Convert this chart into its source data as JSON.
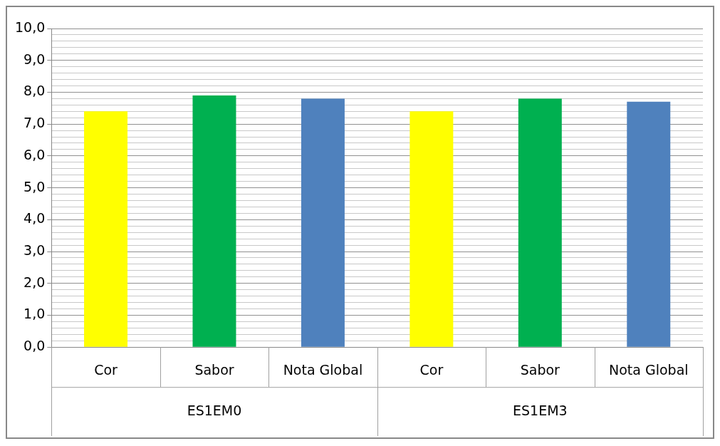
{
  "chart_data": {
    "type": "bar",
    "categories": [
      "Cor",
      "Sabor",
      "Nota Global",
      "Cor",
      "Sabor",
      "Nota Global"
    ],
    "values": [
      7.4,
      7.9,
      7.8,
      7.4,
      7.8,
      7.7
    ],
    "colors": [
      "#ffff00",
      "#00b050",
      "#4f81bd",
      "#ffff00",
      "#00b050",
      "#4f81bd"
    ],
    "ylim": [
      0,
      10
    ],
    "yticks": [
      {
        "value": 0,
        "label": "0,0"
      },
      {
        "value": 0.2,
        "label": null
      },
      {
        "value": 0.4,
        "label": null
      },
      {
        "value": 0.6,
        "label": null
      },
      {
        "value": 0.8,
        "label": null
      },
      {
        "value": 1,
        "label": "1,0"
      },
      {
        "value": 1.2,
        "label": null
      },
      {
        "value": 1.4,
        "label": null
      },
      {
        "value": 1.6,
        "label": null
      },
      {
        "value": 1.8,
        "label": null
      },
      {
        "value": 2,
        "label": "2,0"
      },
      {
        "value": 2.2,
        "label": null
      },
      {
        "value": 2.4,
        "label": null
      },
      {
        "value": 2.6,
        "label": null
      },
      {
        "value": 2.8,
        "label": null
      },
      {
        "value": 3,
        "label": "3,0"
      },
      {
        "value": 3.2,
        "label": null
      },
      {
        "value": 3.4,
        "label": null
      },
      {
        "value": 3.6,
        "label": null
      },
      {
        "value": 3.8,
        "label": null
      },
      {
        "value": 4,
        "label": "4,0"
      },
      {
        "value": 4.2,
        "label": null
      },
      {
        "value": 4.4,
        "label": null
      },
      {
        "value": 4.6,
        "label": null
      },
      {
        "value": 4.8,
        "label": null
      },
      {
        "value": 5,
        "label": "5,0"
      },
      {
        "value": 5.2,
        "label": null
      },
      {
        "value": 5.4,
        "label": null
      },
      {
        "value": 5.6,
        "label": null
      },
      {
        "value": 5.8,
        "label": null
      },
      {
        "value": 6,
        "label": "6,0"
      },
      {
        "value": 6.2,
        "label": null
      },
      {
        "value": 6.4,
        "label": null
      },
      {
        "value": 6.6,
        "label": null
      },
      {
        "value": 6.8,
        "label": null
      },
      {
        "value": 7,
        "label": "7,0"
      },
      {
        "value": 7.2,
        "label": null
      },
      {
        "value": 7.4,
        "label": null
      },
      {
        "value": 7.6,
        "label": null
      },
      {
        "value": 7.8,
        "label": null
      },
      {
        "value": 8,
        "label": "8,0"
      },
      {
        "value": 8.2,
        "label": null
      },
      {
        "value": 8.4,
        "label": null
      },
      {
        "value": 8.6,
        "label": null
      },
      {
        "value": 8.8,
        "label": null
      },
      {
        "value": 9,
        "label": "9,0"
      },
      {
        "value": 9.2,
        "label": null
      },
      {
        "value": 9.4,
        "label": null
      },
      {
        "value": 9.6,
        "label": null
      },
      {
        "value": 9.8,
        "label": null
      },
      {
        "value": 10,
        "label": "10,0"
      }
    ],
    "grid": "y",
    "annotations": [
      "ES1EM0",
      "ES1EM3"
    ]
  }
}
